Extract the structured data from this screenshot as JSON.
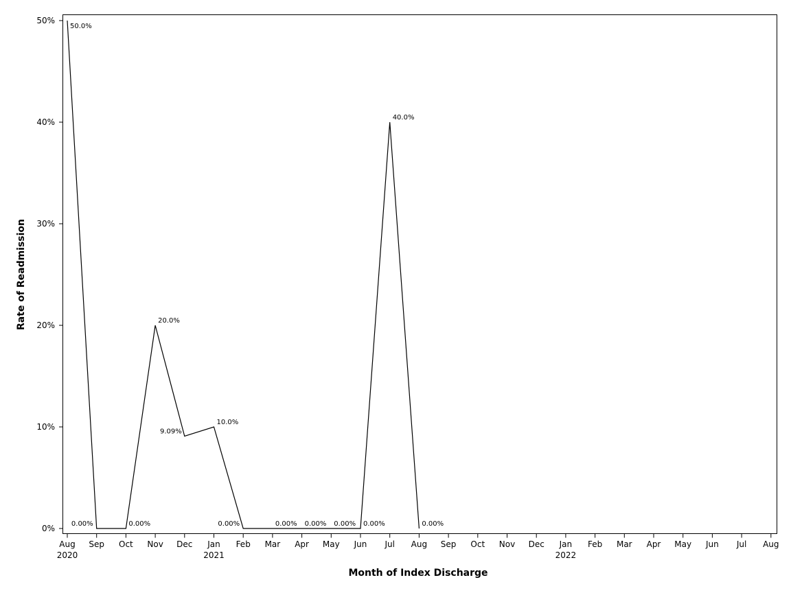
{
  "chart_data": {
    "type": "line",
    "title": "",
    "xlabel": "Month of Index Discharge",
    "ylabel": "Rate of Readmission",
    "x_ticks": [
      {
        "month": "Aug",
        "year": "2020"
      },
      {
        "month": "Sep",
        "year": ""
      },
      {
        "month": "Oct",
        "year": ""
      },
      {
        "month": "Nov",
        "year": ""
      },
      {
        "month": "Dec",
        "year": ""
      },
      {
        "month": "Jan",
        "year": "2021"
      },
      {
        "month": "Feb",
        "year": ""
      },
      {
        "month": "Mar",
        "year": ""
      },
      {
        "month": "Apr",
        "year": ""
      },
      {
        "month": "May",
        "year": ""
      },
      {
        "month": "Jun",
        "year": ""
      },
      {
        "month": "Jul",
        "year": ""
      },
      {
        "month": "Aug",
        "year": ""
      },
      {
        "month": "Sep",
        "year": ""
      },
      {
        "month": "Oct",
        "year": ""
      },
      {
        "month": "Nov",
        "year": ""
      },
      {
        "month": "Dec",
        "year": ""
      },
      {
        "month": "Jan",
        "year": "2022"
      },
      {
        "month": "Feb",
        "year": ""
      },
      {
        "month": "Mar",
        "year": ""
      },
      {
        "month": "Apr",
        "year": ""
      },
      {
        "month": "May",
        "year": ""
      },
      {
        "month": "Jun",
        "year": ""
      },
      {
        "month": "Jul",
        "year": ""
      },
      {
        "month": "Aug",
        "year": ""
      }
    ],
    "y_ticks": [
      "0%",
      "10%",
      "20%",
      "30%",
      "40%",
      "50%"
    ],
    "ylim": [
      0,
      50
    ],
    "grid": false,
    "series": [
      {
        "x": [
          "2020-08-01",
          "2020-09-01",
          "2020-10-01",
          "2020-11-01",
          "2020-12-01",
          "2021-01-01",
          "2021-02-01",
          "2021-03-01",
          "2021-04-01",
          "2021-05-01",
          "2021-06-01",
          "2021-07-01",
          "2021-08-01"
        ],
        "values": [
          50.0,
          0.0,
          0.0,
          20.0,
          9.09,
          10.0,
          0.0,
          0.0,
          0.0,
          0.0,
          0.0,
          40.0,
          0.0
        ],
        "labels": [
          "50.0%",
          "0.00%",
          "0.00%",
          "20.0%",
          "9.09%",
          "10.0%",
          "0.00%",
          "0.00%",
          "0.00%",
          "0.00%",
          "0.00%",
          "40.0%",
          "0.00%"
        ]
      }
    ]
  }
}
